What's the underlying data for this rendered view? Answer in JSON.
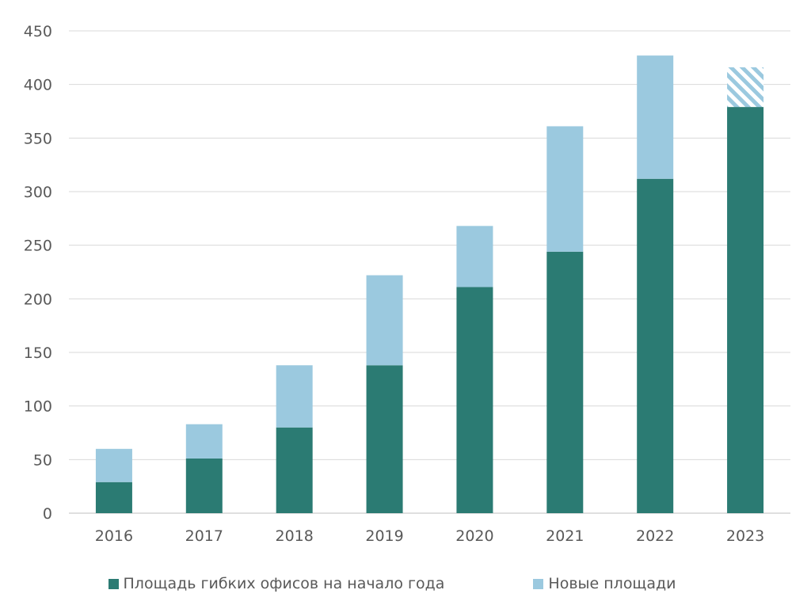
{
  "chart_data": {
    "type": "bar",
    "stacked": true,
    "categories": [
      "2016",
      "2017",
      "2018",
      "2019",
      "2020",
      "2021",
      "2022",
      "2023"
    ],
    "series": [
      {
        "name": "Площадь гибких офисов на начало года",
        "color": "#2b7b73",
        "values": [
          29,
          51,
          80,
          138,
          211,
          244,
          312,
          379
        ]
      },
      {
        "name": "Новые площади",
        "color": "#9bc9df",
        "values": [
          31,
          32,
          58,
          84,
          57,
          117,
          115,
          37
        ],
        "hatched": [
          false,
          false,
          false,
          false,
          false,
          false,
          false,
          true
        ]
      }
    ],
    "ylim": [
      0,
      450
    ],
    "yticks": [
      "0",
      "50",
      "100",
      "150",
      "200",
      "250",
      "300",
      "350",
      "400",
      "450"
    ],
    "grid": true,
    "legend_position": "bottom"
  }
}
